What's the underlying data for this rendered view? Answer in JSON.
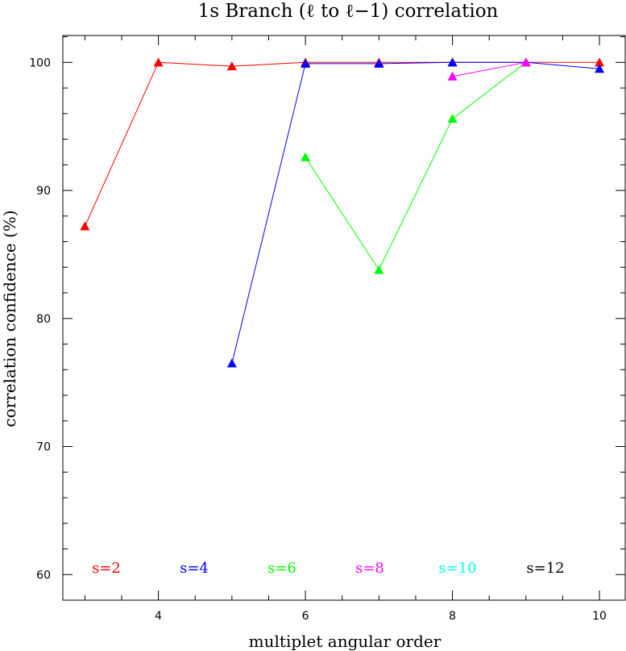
{
  "chart_data": {
    "type": "line",
    "title": "1s Branch (ℓ to ℓ−1) correlation",
    "xlabel": "multiplet angular order",
    "ylabel": "correlation confidence (%)",
    "xlim": [
      2.7,
      10.35
    ],
    "ylim": [
      58,
      102.1
    ],
    "xticks": [
      4,
      6,
      8,
      10
    ],
    "yticks": [
      60,
      70,
      80,
      90,
      100
    ],
    "grid": false,
    "series": [
      {
        "name": "s=2",
        "color": "#ff0000",
        "x": [
          3,
          4,
          5,
          6,
          7,
          8,
          9,
          10
        ],
        "y": [
          87.2,
          100.0,
          99.7,
          100.0,
          100.0,
          100.0,
          100.0,
          100.0
        ]
      },
      {
        "name": "s=4",
        "color": "#0000ff",
        "x": [
          5,
          6,
          7,
          8,
          9,
          10
        ],
        "y": [
          76.5,
          99.9,
          99.9,
          100.0,
          100.0,
          99.5
        ]
      },
      {
        "name": "s=6",
        "color": "#00ff00",
        "x": [
          6,
          7,
          8,
          9
        ],
        "y": [
          92.6,
          83.8,
          95.6,
          100.0
        ]
      },
      {
        "name": "s=8",
        "color": "#ff00ff",
        "x": [
          8,
          9
        ],
        "y": [
          98.9,
          100.0
        ]
      },
      {
        "name": "s=10",
        "color": "#00ffff",
        "x": [],
        "y": []
      },
      {
        "name": "s=12",
        "color": "#000000",
        "x": [],
        "y": []
      }
    ],
    "legend": {
      "placement": "bottom, horizontal row",
      "entries": [
        {
          "label": "s=2",
          "color": "#ff0000"
        },
        {
          "label": "s=4",
          "color": "#0000ff"
        },
        {
          "label": "s=6",
          "color": "#00ff00"
        },
        {
          "label": "s=8",
          "color": "#ff00ff"
        },
        {
          "label": "s=10",
          "color": "#00ffff"
        },
        {
          "label": "s=12",
          "color": "#000000"
        }
      ]
    }
  }
}
